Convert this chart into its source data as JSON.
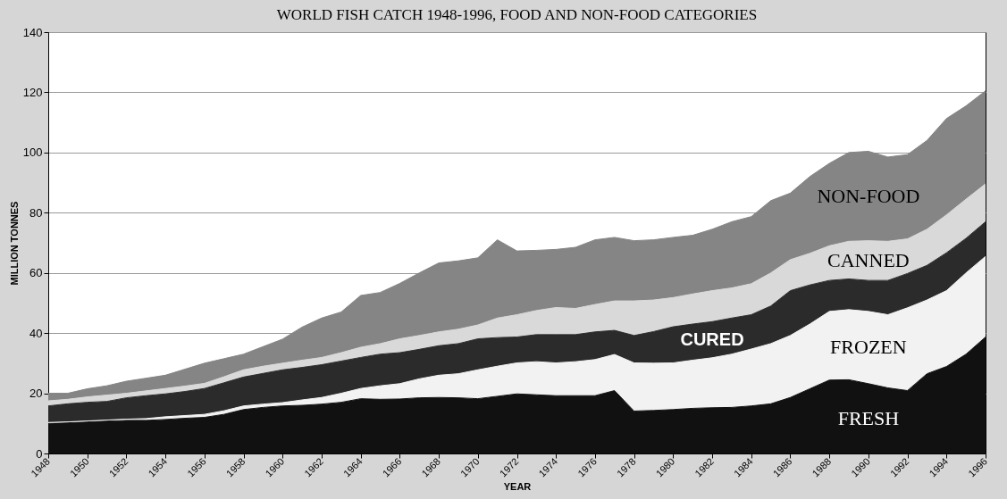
{
  "chart_data": {
    "type": "area",
    "stacked": true,
    "title": "WORLD FISH CATCH 1948-1996, FOOD AND NON-FOOD CATEGORIES",
    "xlabel": "YEAR",
    "ylabel": "MILLION TONNES",
    "x": [
      1948,
      1949,
      1950,
      1951,
      1952,
      1953,
      1954,
      1955,
      1956,
      1957,
      1958,
      1959,
      1960,
      1961,
      1962,
      1963,
      1964,
      1965,
      1966,
      1967,
      1968,
      1969,
      1970,
      1971,
      1972,
      1973,
      1974,
      1975,
      1976,
      1977,
      1978,
      1979,
      1980,
      1981,
      1982,
      1983,
      1984,
      1985,
      1986,
      1987,
      1988,
      1989,
      1990,
      1991,
      1992,
      1993,
      1994,
      1995,
      1996
    ],
    "series": [
      {
        "name": "FRESH",
        "color": "#111111",
        "values": [
          10,
          10.2,
          10.5,
          10.8,
          11,
          11,
          11.3,
          11.7,
          12,
          13,
          14.6,
          15.3,
          15.8,
          16,
          16.4,
          17,
          18.2,
          18,
          18.1,
          18.5,
          18.6,
          18.5,
          18.2,
          19,
          19.8,
          19.5,
          19.2,
          19.2,
          19.2,
          20.9,
          14.1,
          14.3,
          14.6,
          15,
          15.2,
          15.3,
          15.8,
          16.5,
          18.6,
          21.5,
          24.4,
          24.5,
          23.2,
          21.8,
          20.9,
          26.5,
          28.9,
          33,
          38.7
        ]
      },
      {
        "name": "FROZEN",
        "color": "#f2f2f2",
        "values": [
          0.3,
          0.3,
          0.3,
          0.3,
          0.4,
          0.6,
          0.9,
          0.9,
          1.0,
          1.2,
          1.2,
          1.1,
          1.1,
          1.8,
          2.2,
          3.0,
          3.4,
          4.5,
          5.1,
          6.3,
          7.4,
          8.0,
          9.6,
          10.0,
          10.3,
          11.0,
          10.9,
          11.3,
          12.0,
          12.0,
          16.0,
          15.7,
          15.5,
          16.0,
          16.6,
          17.7,
          18.9,
          20.0,
          20.6,
          21.5,
          22.8,
          23.3,
          24.0,
          24.3,
          27.5,
          24.5,
          25.2,
          27.0,
          26.8
        ]
      },
      {
        "name": "CURED",
        "color": "#2b2b2b",
        "values": [
          5.5,
          6.0,
          6.2,
          6.2,
          7.1,
          7.6,
          7.6,
          8.0,
          8.6,
          9.3,
          9.6,
          10.2,
          10.9,
          10.8,
          10.9,
          10.7,
          10.3,
          10.5,
          10.3,
          9.8,
          9.8,
          10.0,
          10.3,
          9.5,
          8.6,
          9.0,
          9.4,
          9.0,
          9.2,
          8.0,
          9.1,
          10.5,
          12.0,
          12.0,
          12.0,
          12.0,
          11.4,
          12.5,
          14.9,
          13.0,
          10.3,
          10.2,
          10.3,
          11.4,
          11.4,
          11.5,
          12.6,
          11.5,
          11.5
        ]
      },
      {
        "name": "CANNED",
        "color": "#d9d9d9",
        "values": [
          1.7,
          1.5,
          1.8,
          2.1,
          1.5,
          1.6,
          1.8,
          1.8,
          1.7,
          2.0,
          2.4,
          2.4,
          2.2,
          2.4,
          2.4,
          2.8,
          3.4,
          3.5,
          4.6,
          4.6,
          4.6,
          4.8,
          4.6,
          6.5,
          7.4,
          8.0,
          9.0,
          8.7,
          9.1,
          9.8,
          11.5,
          10.5,
          9.7,
          10.0,
          10.3,
          10.0,
          10.3,
          11.0,
          10.3,
          10.5,
          11.5,
          12.5,
          13.2,
          13.0,
          11.5,
          12.0,
          12.6,
          13.0,
          12.6
        ]
      },
      {
        "name": "NON-FOOD",
        "color": "#858585",
        "values": [
          2.5,
          2.0,
          2.7,
          3.1,
          4.0,
          4.2,
          4.4,
          5.6,
          6.7,
          6.0,
          5.2,
          6.5,
          8.0,
          11.0,
          13.1,
          13.5,
          17.2,
          17.0,
          18.4,
          20.8,
          22.9,
          22.7,
          22.3,
          26.0,
          21.2,
          20.0,
          19.3,
          20.3,
          21.5,
          21.1,
          20.0,
          20.0,
          20.0,
          19.5,
          20.4,
          22.0,
          22.3,
          24.0,
          22.1,
          25.5,
          27.4,
          29.5,
          29.7,
          28.0,
          28.0,
          29.5,
          32.0,
          31.0,
          30.9
        ]
      }
    ],
    "xlim": [
      1948,
      1996
    ],
    "xticks": [
      1948,
      1950,
      1952,
      1954,
      1956,
      1958,
      1960,
      1962,
      1964,
      1966,
      1968,
      1970,
      1972,
      1974,
      1976,
      1978,
      1980,
      1982,
      1984,
      1986,
      1988,
      1990,
      1992,
      1994,
      1996
    ],
    "ylim": [
      0,
      140
    ],
    "yticks": [
      0,
      20,
      40,
      60,
      80,
      100,
      120,
      140
    ],
    "grid": "y",
    "legend": false
  }
}
